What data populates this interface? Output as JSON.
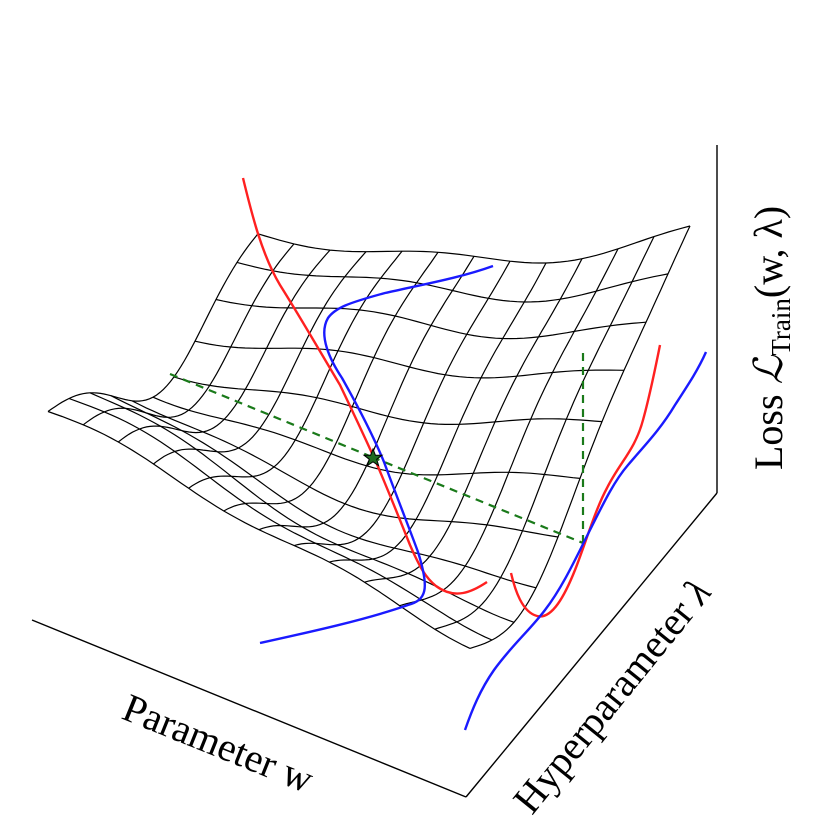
{
  "labels": {
    "parameter_axis": "Parameter w",
    "hyperparameter_axis_prefix": "Hyperparameter",
    "lambda_symbol": "λ",
    "loss_prefix": "Loss",
    "loss_symbol": "ℒ",
    "loss_subscript": "Train",
    "loss_args": "(w, λ)"
  },
  "colors": {
    "mesh": "#000000",
    "red_curve": "#ff2020",
    "blue_curve": "#1a1aff",
    "green_dashed": "#1a7a1a",
    "star": "#1f6b1f"
  }
}
